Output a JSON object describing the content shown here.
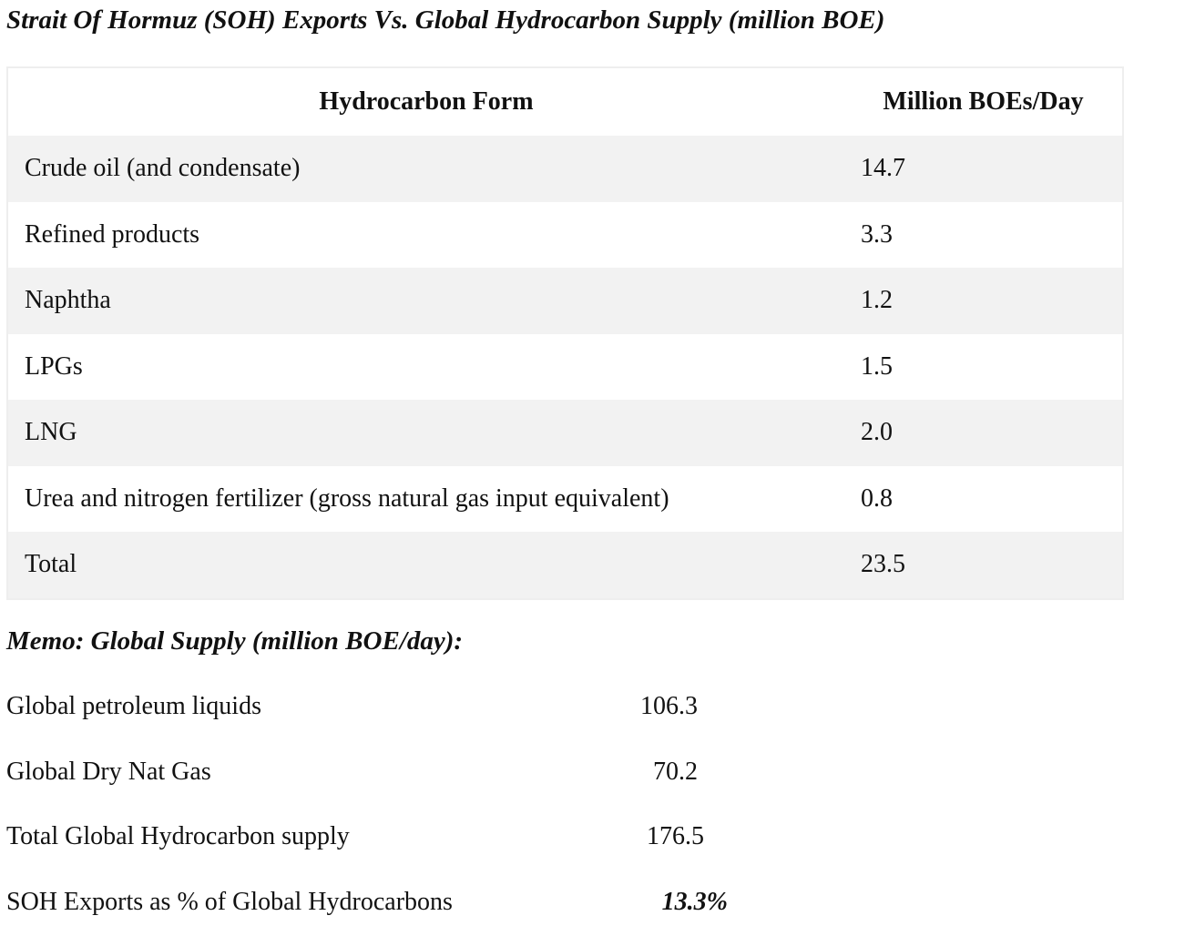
{
  "header": {
    "title": "Strait Of Hormuz (SOH) Exports Vs. Global Hydrocarbon Supply (million BOE)"
  },
  "table": {
    "columns": [
      "Hydrocarbon Form",
      "Million BOEs/Day"
    ],
    "rows": [
      [
        "Crude oil (and condensate)",
        "14.7"
      ],
      [
        "Refined products",
        "3.3"
      ],
      [
        "Naphtha",
        "1.2"
      ],
      [
        "LPGs",
        "1.5"
      ],
      [
        "LNG",
        "2.0"
      ],
      [
        "Urea and nitrogen fertilizer (gross natural gas input equivalent)",
        "0.8"
      ],
      [
        "Total",
        "23.5"
      ]
    ]
  },
  "memo": {
    "title": "Memo: Global Supply (million BOE/day):",
    "rows": [
      [
        "Global petroleum liquids",
        "106.3"
      ],
      [
        "Global Dry Nat Gas",
        "70.2"
      ],
      [
        "Total Global Hydrocarbon supply",
        "176.5"
      ],
      [
        "SOH Exports as % of Global Hydrocarbons",
        "13.3%"
      ]
    ]
  }
}
